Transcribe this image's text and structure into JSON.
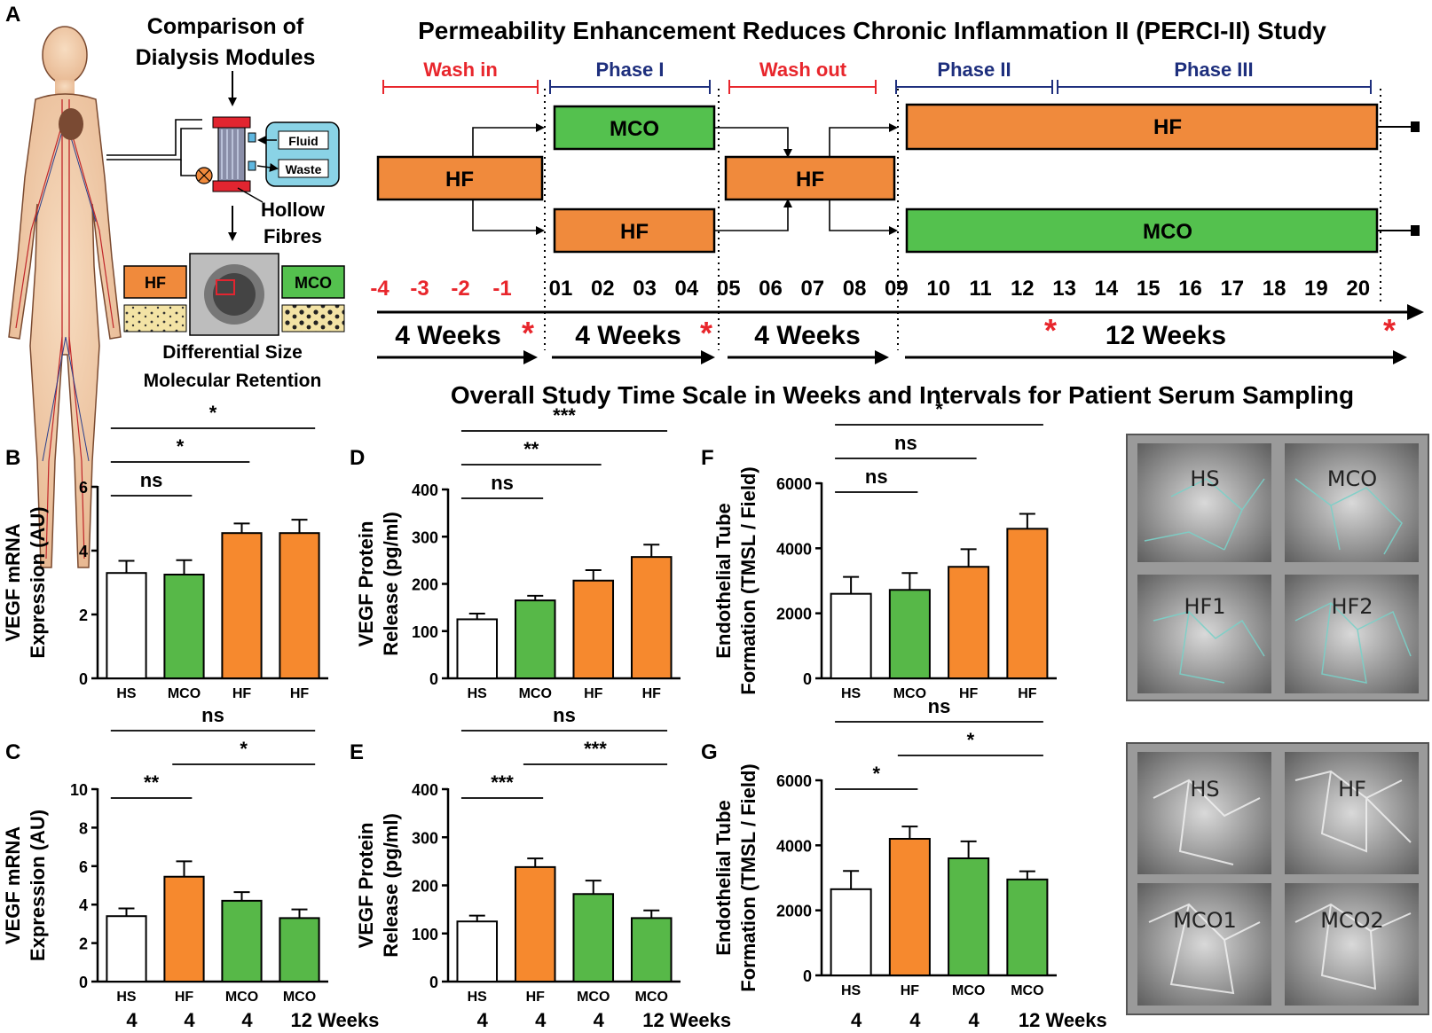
{
  "colors": {
    "hs": "#ffffff",
    "mco": "#57b848",
    "hf": "#f6892e",
    "schema_hf": "#f08a3c",
    "schema_mco": "#54c14e",
    "red": "#e8262c",
    "blue": "#1e2f7d",
    "cyan_box": "#8ad3e6"
  },
  "panel_letters": [
    "A",
    "B",
    "C",
    "D",
    "E",
    "F",
    "G"
  ],
  "panel_a": {
    "left_title": [
      "Comparison of",
      "Dialysis Modules"
    ],
    "fluid_label": "Fluid",
    "waste_label": "Waste",
    "hollow_fibres_label": [
      "Hollow",
      "Fibres"
    ],
    "hf_label": "HF",
    "mco_label": "MCO",
    "retention_caption": [
      "Differential Size",
      "Molecular Retention"
    ],
    "study_title": "Permeability Enhancement Reduces Chronic Inflammation II (PERCI-II) Study",
    "phases": [
      {
        "label": "Wash in",
        "color": "red"
      },
      {
        "label": "Phase I",
        "color": "blue"
      },
      {
        "label": "Wash  out",
        "color": "red"
      },
      {
        "label": "Phase II",
        "color": "blue"
      },
      {
        "label": "Phase III",
        "color": "blue"
      }
    ],
    "boxes": {
      "washin_hf": "HF",
      "phase1_top": "MCO",
      "phase1_bottom": "HF",
      "washout_hf": "HF",
      "late_top": "HF",
      "late_bottom": "MCO"
    },
    "week_numbers_red": [
      "-4",
      "-3",
      "-2",
      "-1"
    ],
    "week_numbers": [
      "01",
      "02",
      "03",
      "04",
      "05",
      "06",
      "07",
      "08",
      "09",
      "10",
      "11",
      "12",
      "13",
      "14",
      "15",
      "16",
      "17",
      "18",
      "19",
      "20"
    ],
    "durations": [
      "4 Weeks",
      "4 Weeks",
      "4 Weeks",
      "12 Weeks"
    ],
    "sampling_mark": "*",
    "timescale_caption": "Overall Study Time Scale in Weeks and Intervals for Patient Serum Sampling"
  },
  "micrographs": {
    "top": [
      "HS",
      "MCO",
      "HF1",
      "HF2"
    ],
    "bottom": [
      "HS",
      "HF",
      "MCO1",
      "MCO2"
    ]
  },
  "chart_data": [
    {
      "panel": "B",
      "type": "bar",
      "ylabel": [
        "VEGF mRNA",
        "Expression (AU)"
      ],
      "categories": [
        "HS",
        "MCO",
        "HF",
        "HF"
      ],
      "fills": [
        "hs",
        "mco",
        "hf",
        "hf"
      ],
      "values": [
        3.3,
        3.25,
        4.55,
        4.55
      ],
      "errors": [
        0.38,
        0.45,
        0.3,
        0.42
      ],
      "ylim": [
        0,
        6
      ],
      "yticks": [
        0,
        2,
        4,
        6
      ],
      "brackets": [
        {
          "from": 0,
          "to": 1,
          "label": "ns"
        },
        {
          "from": 0,
          "to": 2,
          "label": "*"
        },
        {
          "from": 0,
          "to": 3,
          "label": "*"
        }
      ]
    },
    {
      "panel": "C",
      "type": "bar",
      "ylabel": [
        "VEGF mRNA",
        "Expression (AU)"
      ],
      "categories": [
        "HS",
        "HF",
        "MCO",
        "MCO"
      ],
      "fills": [
        "hs",
        "hf",
        "mco",
        "mco"
      ],
      "values": [
        3.4,
        5.45,
        4.2,
        3.3
      ],
      "errors": [
        0.4,
        0.8,
        0.45,
        0.45
      ],
      "ylim": [
        0,
        10
      ],
      "yticks": [
        0,
        2,
        4,
        6,
        8,
        10
      ],
      "weeks": [
        "4",
        "4",
        "4",
        "12 Weeks"
      ],
      "brackets": [
        {
          "from": 0,
          "to": 1,
          "label": "**"
        },
        {
          "from": 1,
          "to": 3,
          "label": "*"
        },
        {
          "from": 0,
          "to": 3,
          "label": "ns"
        }
      ]
    },
    {
      "panel": "D",
      "type": "bar",
      "ylabel": [
        "VEGF Protein",
        "Release (pg/ml)"
      ],
      "categories": [
        "HS",
        "MCO",
        "HF",
        "HF"
      ],
      "fills": [
        "hs",
        "mco",
        "hf",
        "hf"
      ],
      "values": [
        125,
        165,
        207,
        257
      ],
      "errors": [
        12,
        10,
        22,
        26
      ],
      "ylim": [
        0,
        400
      ],
      "yticks": [
        0,
        100,
        200,
        300,
        400
      ],
      "brackets": [
        {
          "from": 0,
          "to": 1,
          "label": "ns"
        },
        {
          "from": 0,
          "to": 2,
          "label": "**"
        },
        {
          "from": 0,
          "to": 3,
          "label": "***"
        }
      ]
    },
    {
      "panel": "E",
      "type": "bar",
      "ylabel": [
        "VEGF Protein",
        "Release (pg/ml)"
      ],
      "categories": [
        "HS",
        "HF",
        "MCO",
        "MCO"
      ],
      "fills": [
        "hs",
        "hf",
        "mco",
        "mco"
      ],
      "values": [
        125,
        238,
        182,
        132
      ],
      "errors": [
        12,
        18,
        28,
        16
      ],
      "ylim": [
        0,
        400
      ],
      "yticks": [
        0,
        100,
        200,
        300,
        400
      ],
      "weeks": [
        "4",
        "4",
        "4",
        "12 Weeks"
      ],
      "brackets": [
        {
          "from": 0,
          "to": 1,
          "label": "***"
        },
        {
          "from": 1,
          "to": 3,
          "label": "***"
        },
        {
          "from": 0,
          "to": 3,
          "label": "ns"
        }
      ]
    },
    {
      "panel": "F",
      "type": "bar",
      "ylabel": [
        "Endothelial Tube",
        "Formation (TMSL / Field)"
      ],
      "categories": [
        "HS",
        "MCO",
        "HF",
        "HF"
      ],
      "fills": [
        "hs",
        "mco",
        "hf",
        "hf"
      ],
      "values": [
        2600,
        2720,
        3430,
        4600
      ],
      "errors": [
        520,
        520,
        540,
        460
      ],
      "ylim": [
        0,
        6000
      ],
      "yticks": [
        0,
        2000,
        4000,
        6000
      ],
      "brackets": [
        {
          "from": 0,
          "to": 1,
          "label": "ns"
        },
        {
          "from": 0,
          "to": 2,
          "label": "ns"
        },
        {
          "from": 0,
          "to": 3,
          "label": "*"
        }
      ]
    },
    {
      "panel": "G",
      "type": "bar",
      "ylabel": [
        "Endothelial Tube",
        "Formation (TMSL / Field)"
      ],
      "categories": [
        "HS",
        "HF",
        "MCO",
        "MCO"
      ],
      "fills": [
        "hs",
        "hf",
        "mco",
        "mco"
      ],
      "values": [
        2650,
        4200,
        3600,
        2950
      ],
      "errors": [
        560,
        380,
        520,
        250
      ],
      "ylim": [
        0,
        6000
      ],
      "yticks": [
        0,
        2000,
        4000,
        6000
      ],
      "weeks": [
        "4",
        "4",
        "4",
        "12 Weeks"
      ],
      "brackets": [
        {
          "from": 0,
          "to": 1,
          "label": "*"
        },
        {
          "from": 1,
          "to": 3,
          "label": "*"
        },
        {
          "from": 0,
          "to": 3,
          "label": "ns"
        }
      ]
    }
  ]
}
